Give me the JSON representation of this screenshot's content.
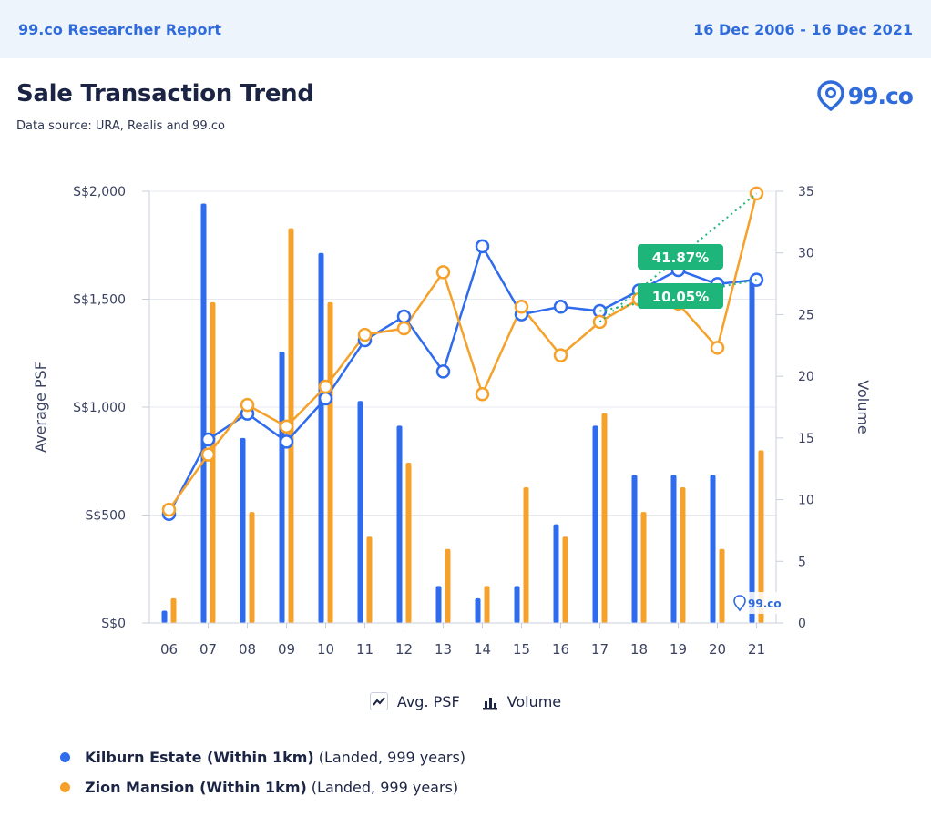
{
  "header": {
    "report_name": "99.co Researcher Report",
    "date_range": "16 Dec 2006 - 16 Dec 2021"
  },
  "title": "Sale Transaction Trend",
  "subtitle": "Data source: URA, Realis and 99.co",
  "logo": {
    "text": "99.co",
    "icon": "location-pin-icon"
  },
  "legend": {
    "line_label": "Avg. PSF",
    "bar_label": "Volume",
    "line_icon": "line-chart-icon",
    "bar_icon": "bar-chart-icon"
  },
  "series_info": [
    {
      "name": "Kilburn Estate (Within 1km)",
      "detail": "(Landed, 999 years)",
      "color": "#2f6bed"
    },
    {
      "name": "Zion Mansion (Within 1km)",
      "detail": "(Landed, 999 years)",
      "color": "#f5a12a"
    }
  ],
  "chart_data": {
    "type": "bar+line",
    "categories": [
      "06",
      "07",
      "08",
      "09",
      "10",
      "11",
      "12",
      "13",
      "14",
      "15",
      "16",
      "17",
      "18",
      "19",
      "20",
      "21"
    ],
    "ylabel": "Average PSF",
    "y2label": "Volume",
    "ylim": [
      0,
      2000
    ],
    "y_ticks": [
      "S$0",
      "S$500",
      "S$1,000",
      "S$1,500",
      "S$2,000"
    ],
    "y2lim": [
      0,
      35
    ],
    "y2_ticks": [
      "0",
      "5",
      "10",
      "15",
      "20",
      "25",
      "30",
      "35"
    ],
    "grid": true,
    "watermark": "99.co",
    "series": [
      {
        "name": "Kilburn Estate (Within 1km)",
        "color": "#2f6bed",
        "volume": [
          1,
          34,
          15,
          22,
          30,
          18,
          16,
          3,
          2,
          3,
          8,
          16,
          12,
          12,
          12,
          28
        ],
        "avg_psf": [
          505,
          850,
          970,
          840,
          1040,
          1310,
          1420,
          1165,
          1745,
          1430,
          1465,
          1445,
          1540,
          1635,
          1570,
          1590
        ]
      },
      {
        "name": "Zion Mansion (Within 1km)",
        "color": "#f5a12a",
        "volume": [
          2,
          26,
          9,
          32,
          26,
          7,
          13,
          6,
          3,
          11,
          7,
          17,
          9,
          11,
          6,
          14
        ],
        "avg_psf": [
          525,
          780,
          1010,
          910,
          1095,
          1335,
          1365,
          1625,
          1060,
          1465,
          1240,
          1395,
          1500,
          1480,
          1275,
          1990
        ]
      }
    ],
    "annotations": [
      {
        "text": "41.87%",
        "color": "#1db57a"
      },
      {
        "text": "10.05%",
        "color": "#1db57a"
      }
    ]
  }
}
